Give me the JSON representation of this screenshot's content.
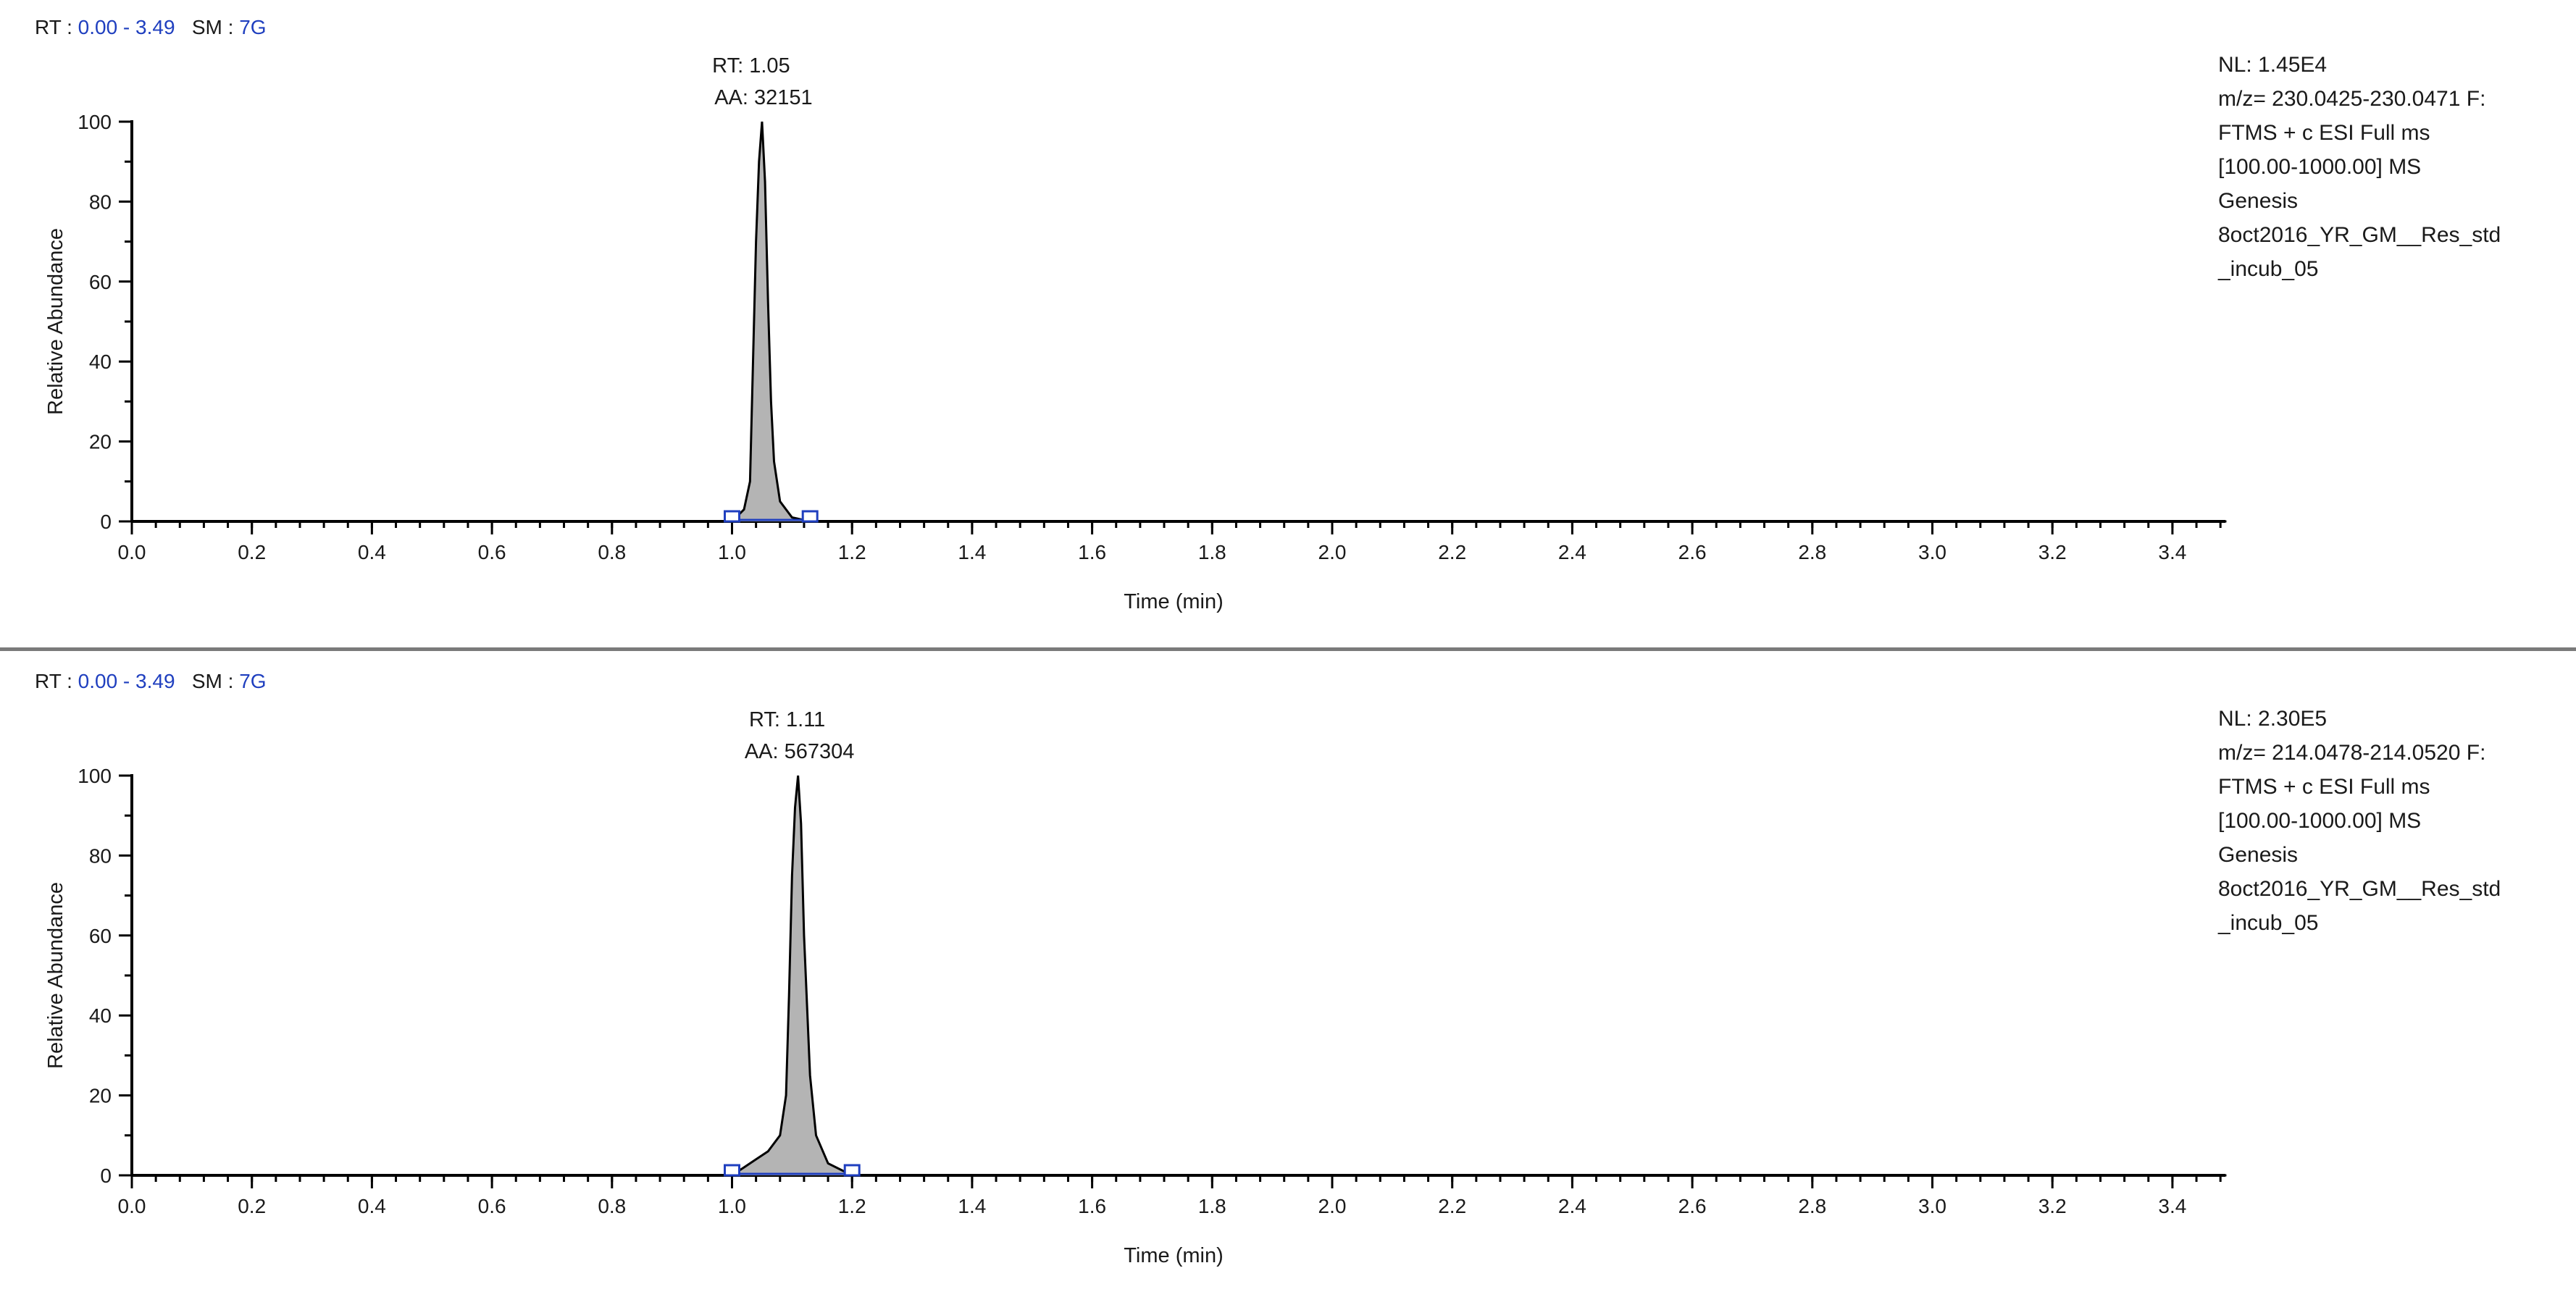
{
  "chart_data": [
    {
      "type": "area",
      "header": {
        "rt_label": "RT :",
        "rt_range": "0.00 - 3.49",
        "sm_label": "SM :",
        "sm_value": "7G"
      },
      "xlabel": "Time (min)",
      "ylabel": "Relative Abundance",
      "xlim": [
        0.0,
        3.49
      ],
      "ylim": [
        0,
        100
      ],
      "x_ticks": [
        "0.0",
        "0.2",
        "0.4",
        "0.6",
        "0.8",
        "1.0",
        "1.2",
        "1.4",
        "1.6",
        "1.8",
        "2.0",
        "2.2",
        "2.4",
        "2.6",
        "2.8",
        "3.0",
        "3.2",
        "3.4"
      ],
      "y_ticks": [
        "0",
        "20",
        "40",
        "60",
        "80",
        "100"
      ],
      "peak": {
        "rt_text": "RT: 1.05",
        "aa_text": "AA: 32151",
        "rt": 1.05,
        "start": 1.0,
        "end": 1.13
      },
      "series": [
        {
          "x": [
            0.0,
            1.0,
            1.02,
            1.03,
            1.035,
            1.04,
            1.045,
            1.05,
            1.055,
            1.06,
            1.065,
            1.07,
            1.08,
            1.1,
            1.13,
            3.49
          ],
          "y": [
            0,
            0,
            3,
            10,
            40,
            70,
            90,
            100,
            85,
            55,
            30,
            15,
            5,
            1,
            0,
            0
          ]
        }
      ],
      "info": [
        "NL: 1.45E4",
        "m/z= 230.0425-230.0471 F:",
        "FTMS + c ESI Full ms",
        "[100.00-1000.00]  MS",
        "Genesis",
        "8oct2016_YR_GM__Res_std",
        "_incub_05"
      ]
    },
    {
      "type": "area",
      "header": {
        "rt_label": "RT :",
        "rt_range": "0.00 - 3.49",
        "sm_label": "SM :",
        "sm_value": "7G"
      },
      "xlabel": "Time (min)",
      "ylabel": "Relative Abundance",
      "xlim": [
        0.0,
        3.49
      ],
      "ylim": [
        0,
        100
      ],
      "x_ticks": [
        "0.0",
        "0.2",
        "0.4",
        "0.6",
        "0.8",
        "1.0",
        "1.2",
        "1.4",
        "1.6",
        "1.8",
        "2.0",
        "2.2",
        "2.4",
        "2.6",
        "2.8",
        "3.0",
        "3.2",
        "3.4"
      ],
      "y_ticks": [
        "0",
        "20",
        "40",
        "60",
        "80",
        "100"
      ],
      "peak": {
        "rt_text": "RT: 1.11",
        "aa_text": "AA: 567304",
        "rt": 1.11,
        "start": 1.0,
        "end": 1.2
      },
      "series": [
        {
          "x": [
            0.0,
            1.0,
            1.02,
            1.04,
            1.06,
            1.08,
            1.09,
            1.095,
            1.1,
            1.105,
            1.11,
            1.115,
            1.12,
            1.13,
            1.14,
            1.16,
            1.2,
            3.49
          ],
          "y": [
            0,
            0,
            2,
            4,
            6,
            10,
            20,
            45,
            75,
            92,
            100,
            88,
            60,
            25,
            10,
            3,
            0,
            0
          ]
        }
      ],
      "info": [
        "NL: 2.30E5",
        "m/z= 214.0478-214.0520 F:",
        "FTMS + c ESI Full ms",
        "[100.00-1000.00]  MS",
        "Genesis",
        "8oct2016_YR_GM__Res_std",
        "_incub_05"
      ]
    }
  ],
  "colors": {
    "fill": "#b4b4b4",
    "line": "#000000",
    "marker": "#1f3fbf",
    "header_value": "#1f3fbf"
  }
}
